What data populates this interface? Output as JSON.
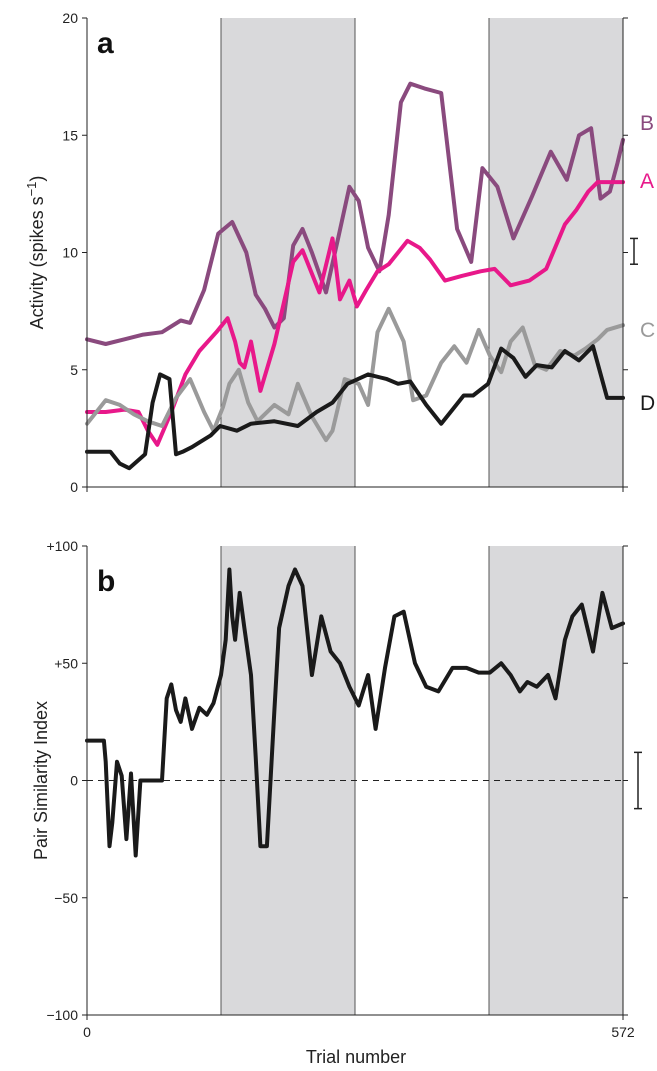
{
  "x_axis": {
    "title": "Trial number",
    "tick_labels": [
      "0",
      "572"
    ],
    "range": [
      0,
      572
    ]
  },
  "block_shading": [
    {
      "start": 0,
      "end": 143,
      "fill": "#ffffff"
    },
    {
      "start": 143,
      "end": 286,
      "fill": "#d9d9db"
    },
    {
      "start": 286,
      "end": 429,
      "fill": "#ffffff"
    },
    {
      "start": 429,
      "end": 572,
      "fill": "#d9d9db"
    }
  ],
  "colors": {
    "A": "#e8188a",
    "B": "#8a4a7e",
    "C": "#9a9a9a",
    "D": "#1a1a1a",
    "shade": "#d9d9db"
  },
  "chart_data": [
    {
      "panel_label": "a",
      "type": "line",
      "ylabel": "Activity (spikes s",
      "ylabel_sup": "−1",
      "ylabel_close": ")",
      "ylim": [
        0,
        20
      ],
      "y_ticks": [
        0,
        5,
        10,
        15,
        20
      ],
      "y_tick_labels": [
        "0",
        "5",
        "10",
        "15",
        "20"
      ],
      "error_bar": {
        "y_low": 9.5,
        "y_high": 10.6
      },
      "series": [
        {
          "name": "B",
          "color": "#8a4a7e",
          "x": [
            0,
            20,
            40,
            60,
            80,
            100,
            110,
            125,
            140,
            155,
            170,
            180,
            190,
            200,
            210,
            220,
            230,
            240,
            255,
            268,
            280,
            290,
            300,
            312,
            322,
            335,
            345,
            360,
            378,
            395,
            410,
            422,
            438,
            455,
            475,
            495,
            512,
            525,
            538,
            548,
            558,
            566,
            572
          ],
          "y": [
            6.3,
            6.1,
            6.3,
            6.5,
            6.6,
            7.1,
            7.0,
            8.4,
            10.8,
            11.3,
            10.0,
            8.2,
            7.6,
            6.8,
            7.2,
            10.3,
            11.0,
            10.0,
            8.3,
            10.6,
            12.8,
            12.2,
            10.2,
            9.2,
            11.6,
            16.4,
            17.2,
            17.0,
            16.8,
            11.0,
            9.6,
            13.6,
            12.8,
            10.6,
            12.4,
            14.3,
            13.1,
            15.0,
            15.3,
            12.3,
            12.6,
            13.8,
            14.8
          ]
        },
        {
          "name": "A",
          "color": "#e8188a",
          "x": [
            0,
            20,
            40,
            55,
            65,
            75,
            90,
            105,
            120,
            138,
            150,
            158,
            163,
            168,
            175,
            185,
            200,
            220,
            230,
            248,
            262,
            270,
            280,
            288,
            298,
            310,
            322,
            342,
            355,
            366,
            382,
            400,
            420,
            435,
            452,
            472,
            490,
            510,
            522,
            535,
            545,
            555,
            572
          ],
          "y": [
            3.2,
            3.2,
            3.3,
            3.2,
            2.4,
            1.8,
            3.2,
            4.8,
            5.8,
            6.6,
            7.2,
            6.2,
            5.3,
            5.1,
            6.2,
            4.1,
            6.1,
            9.6,
            10.1,
            8.3,
            10.6,
            8.0,
            8.8,
            7.7,
            8.4,
            9.2,
            9.5,
            10.5,
            10.2,
            9.7,
            8.8,
            9.0,
            9.2,
            9.3,
            8.6,
            8.8,
            9.3,
            11.2,
            11.8,
            12.6,
            13.0,
            13.0,
            13.0
          ]
        },
        {
          "name": "C",
          "color": "#9a9a9a",
          "x": [
            0,
            10,
            20,
            35,
            50,
            65,
            80,
            95,
            110,
            125,
            135,
            145,
            152,
            162,
            172,
            182,
            200,
            215,
            225,
            240,
            255,
            262,
            275,
            290,
            300,
            310,
            322,
            338,
            348,
            362,
            378,
            392,
            405,
            418,
            430,
            442,
            452,
            465,
            478,
            490,
            505,
            520,
            532,
            545,
            555,
            572
          ],
          "y": [
            2.7,
            3.2,
            3.7,
            3.5,
            3.1,
            2.8,
            2.6,
            3.8,
            4.6,
            3.2,
            2.4,
            3.4,
            4.4,
            5.0,
            3.6,
            2.8,
            3.5,
            3.1,
            4.4,
            3.0,
            2.0,
            2.4,
            4.6,
            4.4,
            3.5,
            6.6,
            7.6,
            6.2,
            3.7,
            3.9,
            5.3,
            6.0,
            5.3,
            6.7,
            5.6,
            4.9,
            6.2,
            6.8,
            5.2,
            5.0,
            5.8,
            5.6,
            5.9,
            6.3,
            6.7,
            6.9
          ]
        },
        {
          "name": "D",
          "color": "#1a1a1a",
          "x": [
            0,
            25,
            35,
            45,
            62,
            70,
            78,
            88,
            95,
            102,
            112,
            120,
            132,
            142,
            160,
            175,
            200,
            225,
            245,
            262,
            278,
            300,
            320,
            332,
            345,
            362,
            378,
            390,
            402,
            412,
            428,
            442,
            455,
            468,
            480,
            496,
            510,
            525,
            540,
            555,
            572
          ],
          "y": [
            1.5,
            1.5,
            1.0,
            0.8,
            1.4,
            3.6,
            4.8,
            4.6,
            1.4,
            1.5,
            1.7,
            1.9,
            2.2,
            2.6,
            2.4,
            2.7,
            2.8,
            2.6,
            3.2,
            3.6,
            4.4,
            4.8,
            4.6,
            4.4,
            4.5,
            3.5,
            2.7,
            3.3,
            3.9,
            3.9,
            4.4,
            5.9,
            5.5,
            4.7,
            5.2,
            5.1,
            5.8,
            5.4,
            6.0,
            3.8,
            3.8
          ]
        }
      ]
    },
    {
      "panel_label": "b",
      "type": "line",
      "ylabel": "Pair Similarity Index",
      "ylim": [
        -100,
        100
      ],
      "y_ticks": [
        -100,
        -50,
        0,
        50,
        100
      ],
      "y_tick_labels": [
        "−100",
        "−50",
        "0",
        "+50",
        "+100"
      ],
      "zero_line": true,
      "error_bar": {
        "y_low": -12,
        "y_high": 12
      },
      "series": [
        {
          "color": "#1a1a1a",
          "x": [
            0,
            18,
            20,
            24,
            27,
            32,
            37,
            42,
            47,
            52,
            57,
            60,
            63,
            67,
            70,
            75,
            80,
            85,
            90,
            95,
            100,
            105,
            112,
            120,
            128,
            135,
            143,
            148,
            152,
            155,
            158,
            163,
            168,
            175,
            180,
            185,
            192,
            200,
            205,
            215,
            222,
            230,
            240,
            250,
            260,
            270,
            280,
            290,
            300,
            308,
            318,
            328,
            338,
            350,
            362,
            375,
            390,
            405,
            418,
            430,
            442,
            452,
            462,
            470,
            480,
            492,
            500,
            510,
            518,
            528,
            540,
            550,
            560,
            572
          ],
          "y": [
            17,
            17,
            8,
            -28,
            -18,
            8,
            2,
            -25,
            3,
            -32,
            0,
            0,
            0,
            0,
            0,
            0,
            0,
            35,
            41,
            30,
            25,
            35,
            22,
            31,
            28,
            33,
            45,
            60,
            90,
            70,
            60,
            80,
            65,
            45,
            10,
            -28,
            -28,
            30,
            65,
            83,
            90,
            83,
            45,
            70,
            55,
            50,
            40,
            32,
            45,
            22,
            48,
            70,
            72,
            50,
            40,
            38,
            48,
            48,
            46,
            46,
            50,
            45,
            38,
            42,
            40,
            45,
            35,
            60,
            70,
            75,
            55,
            80,
            65,
            67
          ]
        }
      ]
    }
  ]
}
